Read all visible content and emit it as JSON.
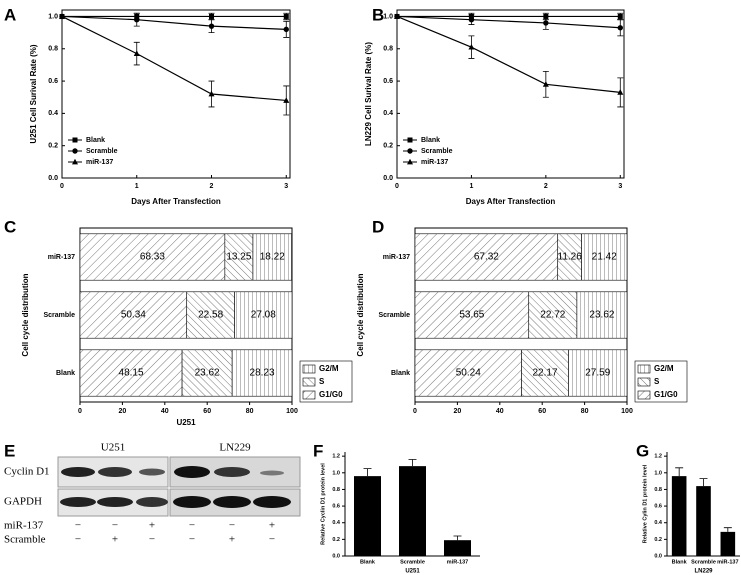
{
  "chart_data": [
    {
      "type": "line",
      "panel": "A",
      "ylabel": "U251 Cell Surival Rate (%)",
      "xlabel": "Days After Transfection",
      "x": [
        0,
        1,
        2,
        3
      ],
      "xlim": [
        0,
        3.05
      ],
      "xticks": [
        0,
        1,
        2,
        3
      ],
      "ylim": [
        0,
        1.04
      ],
      "yticks": [
        {
          "value": 0,
          "label": "0.0"
        },
        0.2,
        0.4,
        0.6,
        0.8,
        {
          "value": 1,
          "label": "1.0"
        }
      ],
      "legend": "lower left",
      "series": [
        {
          "name": "Blank",
          "color": "#000000",
          "marker": "square",
          "values": [
            1,
            1,
            1,
            1
          ],
          "errors": [
            0,
            0.02,
            0.02,
            0.02
          ]
        },
        {
          "name": "Scramble",
          "color": "#000000",
          "marker": "circle",
          "values": [
            1,
            0.98,
            0.94,
            0.92
          ],
          "errors": [
            0,
            0.04,
            0.04,
            0.05
          ]
        },
        {
          "name": "miR-137",
          "color": "#000000",
          "marker": "triangle",
          "values": [
            1,
            0.77,
            0.52,
            0.48
          ],
          "errors": [
            0,
            0.07,
            0.08,
            0.09
          ]
        }
      ]
    },
    {
      "type": "line",
      "panel": "B",
      "ylabel": "LN229 Cell Surival Rate (%)",
      "xlabel": "Days After Transfection",
      "x": [
        0,
        1,
        2,
        3
      ],
      "xlim": [
        0,
        3.05
      ],
      "xticks": [
        0,
        1,
        2,
        3
      ],
      "ylim": [
        0,
        1.04
      ],
      "yticks": [
        {
          "value": 0,
          "label": "0.0"
        },
        0.2,
        0.4,
        0.6,
        0.8,
        {
          "value": 1,
          "label": "1.0"
        }
      ],
      "legend": "lower left",
      "series": [
        {
          "name": "Blank",
          "color": "#000000",
          "marker": "square",
          "values": [
            1,
            1,
            1,
            1
          ],
          "errors": [
            0,
            0.02,
            0.02,
            0.02
          ]
        },
        {
          "name": "Scramble",
          "color": "#000000",
          "marker": "circle",
          "values": [
            1,
            0.98,
            0.96,
            0.93
          ],
          "errors": [
            0,
            0.03,
            0.04,
            0.05
          ]
        },
        {
          "name": "miR-137",
          "color": "#000000",
          "marker": "triangle",
          "values": [
            1,
            0.81,
            0.58,
            0.53
          ],
          "errors": [
            0,
            0.07,
            0.08,
            0.09
          ]
        }
      ]
    },
    {
      "type": "bar",
      "orientation": "horizontal",
      "stacked": true,
      "panel": "C",
      "ylabel": "Cell cycle distribution",
      "xlabel": "U251",
      "categories": [
        "miR-137",
        "Scramble",
        "Blank"
      ],
      "xlim": [
        0,
        100
      ],
      "xticks": [
        0,
        20,
        40,
        60,
        80,
        100
      ],
      "legend": "lower right",
      "show_value_labels": true,
      "series": [
        {
          "name": "G1/G0",
          "pattern": "diagonal",
          "values": [
            68.33,
            50.34,
            48.15
          ]
        },
        {
          "name": "S",
          "pattern": "backdiagonal",
          "values": [
            13.25,
            22.58,
            23.62
          ]
        },
        {
          "name": "G2/M",
          "pattern": "vertical",
          "values": [
            18.22,
            27.08,
            28.23
          ]
        }
      ]
    },
    {
      "type": "bar",
      "orientation": "horizontal",
      "stacked": true,
      "panel": "D",
      "ylabel": "Cell cycle distribution",
      "categories": [
        "miR-137",
        "Scramble",
        "Blank"
      ],
      "xlim": [
        0,
        100
      ],
      "xticks": [
        0,
        20,
        40,
        60,
        80,
        100
      ],
      "legend": "lower right",
      "show_value_labels": true,
      "series": [
        {
          "name": "G1/G0",
          "pattern": "diagonal",
          "values": [
            67.32,
            53.65,
            50.24
          ]
        },
        {
          "name": "S",
          "pattern": "backdiagonal",
          "values": [
            11.26,
            22.72,
            22.17
          ]
        },
        {
          "name": "G2/M",
          "pattern": "vertical",
          "values": [
            21.42,
            23.62,
            27.59
          ]
        }
      ]
    },
    {
      "type": "bar",
      "panel": "F",
      "ylabel": "Relative Cyclin D1 protein level",
      "xlabel": "U251",
      "color": "#000000",
      "categories": [
        "Blank",
        "Scramble",
        "miR-137"
      ],
      "values": [
        0.96,
        1.08,
        0.19
      ],
      "errors": [
        0.09,
        0.08,
        0.05
      ],
      "ylim": [
        0,
        1.25
      ],
      "yticks": [
        {
          "value": 0,
          "label": "0.0"
        },
        0.2,
        0.4,
        0.6,
        0.8,
        {
          "value": 1,
          "label": "1.0"
        },
        1.2
      ]
    },
    {
      "type": "bar",
      "panel": "G",
      "ylabel": "Relative Cylin D1 protein level",
      "xlabel": "LN229",
      "color": "#000000",
      "categories": [
        "Blank",
        "Scramble",
        "miR-137"
      ],
      "values": [
        0.96,
        0.84,
        0.29
      ],
      "errors": [
        0.1,
        0.09,
        0.05
      ],
      "ylim": [
        0,
        1.25
      ],
      "yticks": [
        {
          "value": 0,
          "label": "0.0"
        },
        0.2,
        0.4,
        0.6,
        0.8,
        {
          "value": 1,
          "label": "1.0"
        },
        1.2
      ]
    }
  ],
  "blot": {
    "panel": "E",
    "cell_lines": [
      "U251",
      "LN229"
    ],
    "proteins": [
      "Cyclin D1",
      "GAPDH"
    ],
    "treatments": [
      {
        "name": "miR-137",
        "signs": [
          "−",
          "−",
          "+",
          "−",
          "−",
          "+"
        ]
      },
      {
        "name": "Scramble",
        "signs": [
          "−",
          "+",
          "−",
          "−",
          "+",
          "−"
        ]
      }
    ]
  }
}
